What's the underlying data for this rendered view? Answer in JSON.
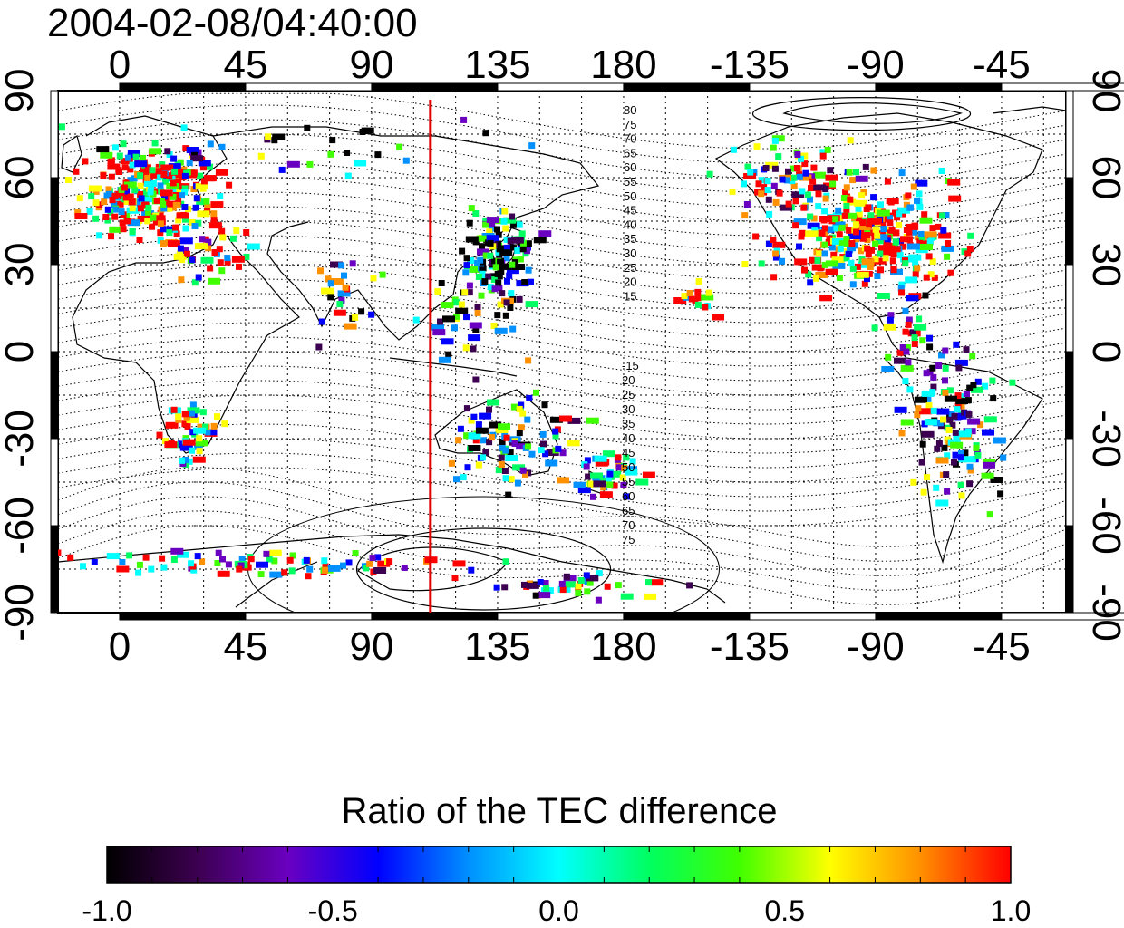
{
  "title": "2004-02-08/04:40:00",
  "top_axis_labels": [
    "0",
    "45",
    "90",
    "135",
    "180",
    "-135",
    "-90",
    "-45"
  ],
  "bottom_axis_labels": [
    "0",
    "45",
    "90",
    "135",
    "180",
    "-135",
    "-90",
    "-45"
  ],
  "left_axis_labels": [
    "90",
    "60",
    "30",
    "0",
    "-30",
    "-60",
    "-90"
  ],
  "right_axis_labels": [
    "90",
    "60",
    "30",
    "0",
    "-30",
    "-60",
    "-90"
  ],
  "contour_labels_north": [
    "80",
    "75",
    "70",
    "65",
    "60",
    "55",
    "50",
    "45",
    "40",
    "35",
    "30",
    "25",
    "20",
    "15"
  ],
  "contour_labels_south": [
    "-15",
    "20",
    "25",
    "30",
    "35",
    "40",
    "45",
    "50",
    "55",
    "60",
    "65",
    "70",
    "75"
  ],
  "colorbar": {
    "title": "Ratio of the TEC difference",
    "tick_labels": [
      "-1.0",
      "-0.5",
      "0.0",
      "0.5",
      "1.0"
    ],
    "range": [
      -1.0,
      1.0
    ]
  },
  "colors": {
    "marker_line": "#e00000",
    "scale": [
      "#000000",
      "#3c0050",
      "#6a00c0",
      "#0000ff",
      "#0090ff",
      "#00ffff",
      "#00ff60",
      "#40ff00",
      "#ffff00",
      "#ff9000",
      "#ff0000"
    ]
  },
  "map": {
    "projection": "equirectangular",
    "lon_range": [
      -22,
      338
    ],
    "lat_range": [
      -90,
      90
    ],
    "meridian_marker_lon": 111,
    "grid_lon_step": 15,
    "grid_lat_step": 15
  }
}
